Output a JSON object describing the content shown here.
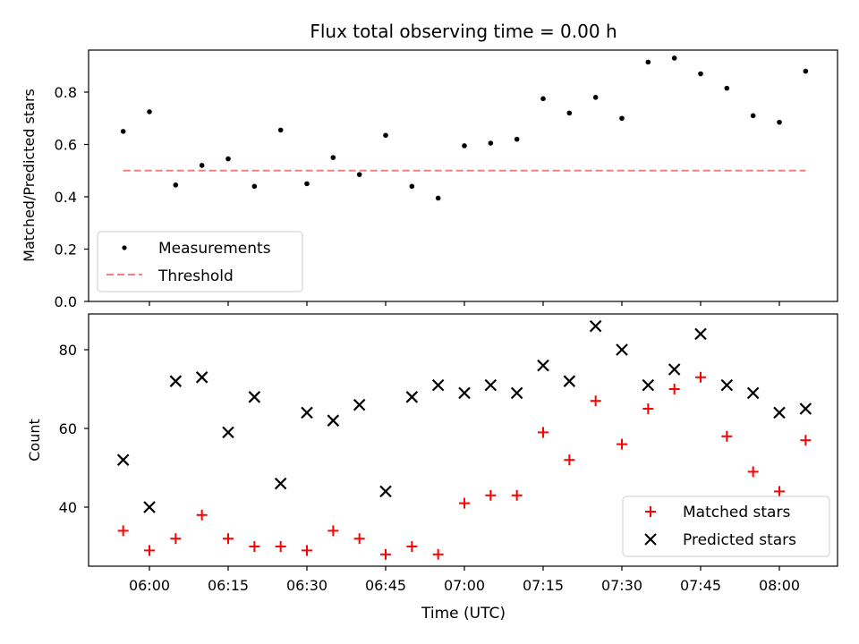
{
  "chart_data": [
    {
      "type": "scatter",
      "title": "Flux total observing time = 0.00 h",
      "xlabel": "",
      "ylabel": "Matched/Predicted stars",
      "ylim": [
        0,
        0.96
      ],
      "yticks": [
        "0.0",
        "0.2",
        "0.4",
        "0.6",
        "0.8"
      ],
      "ytick_values": [
        0,
        0.2,
        0.4,
        0.6,
        0.8
      ],
      "legend_position": "lower-left",
      "x": [
        "05:55",
        "06:00",
        "06:05",
        "06:10",
        "06:15",
        "06:20",
        "06:25",
        "06:30",
        "06:35",
        "06:40",
        "06:45",
        "06:50",
        "06:55",
        "07:00",
        "07:05",
        "07:10",
        "07:15",
        "07:20",
        "07:25",
        "07:30",
        "07:35",
        "07:40",
        "07:45",
        "07:50",
        "07:55",
        "08:00",
        "08:05"
      ],
      "series": [
        {
          "name": "Measurements",
          "marker": "dot",
          "color": "#000000",
          "values": [
            0.65,
            0.725,
            0.445,
            0.52,
            0.545,
            0.44,
            0.655,
            0.45,
            0.55,
            0.485,
            0.635,
            0.44,
            0.395,
            0.595,
            0.605,
            0.62,
            0.775,
            0.72,
            0.78,
            0.7,
            0.915,
            0.93,
            0.87,
            0.815,
            0.71,
            0.685,
            0.88
          ]
        },
        {
          "name": "Threshold",
          "type": "line",
          "style": "dashed",
          "color": "#f08080",
          "x": [
            "05:55",
            "08:05"
          ],
          "values": [
            0.5,
            0.5
          ]
        }
      ]
    },
    {
      "type": "scatter",
      "title": "",
      "xlabel": "Time (UTC)",
      "ylabel": "Count",
      "ylim": [
        25,
        90
      ],
      "yticks": [
        "40",
        "60",
        "80"
      ],
      "ytick_values": [
        40,
        60,
        80
      ],
      "xticks": [
        "06:00",
        "06:15",
        "06:30",
        "06:45",
        "07:00",
        "07:15",
        "07:30",
        "07:45",
        "08:00"
      ],
      "legend_position": "lower-right",
      "x": [
        "05:55",
        "06:00",
        "06:05",
        "06:10",
        "06:15",
        "06:20",
        "06:25",
        "06:30",
        "06:35",
        "06:40",
        "06:45",
        "06:50",
        "06:55",
        "07:00",
        "07:05",
        "07:10",
        "07:15",
        "07:20",
        "07:25",
        "07:30",
        "07:35",
        "07:40",
        "07:45",
        "07:50",
        "07:55",
        "08:00",
        "08:05"
      ],
      "series": [
        {
          "name": "Matched stars",
          "marker": "plus",
          "color": "#ff0000",
          "values": [
            34,
            29,
            32,
            38,
            32,
            30,
            30,
            29,
            34,
            32,
            28,
            30,
            28,
            41,
            43,
            43,
            59,
            52,
            67,
            56,
            65,
            70,
            73,
            58,
            49,
            44,
            57
          ]
        },
        {
          "name": "Predicted stars",
          "marker": "x",
          "color": "#000000",
          "values": [
            52,
            40,
            72,
            73,
            59,
            68,
            46,
            64,
            62,
            66,
            44,
            68,
            71,
            69,
            71,
            69,
            76,
            72,
            86,
            80,
            71,
            75,
            84,
            71,
            69,
            64,
            65
          ]
        }
      ]
    }
  ]
}
